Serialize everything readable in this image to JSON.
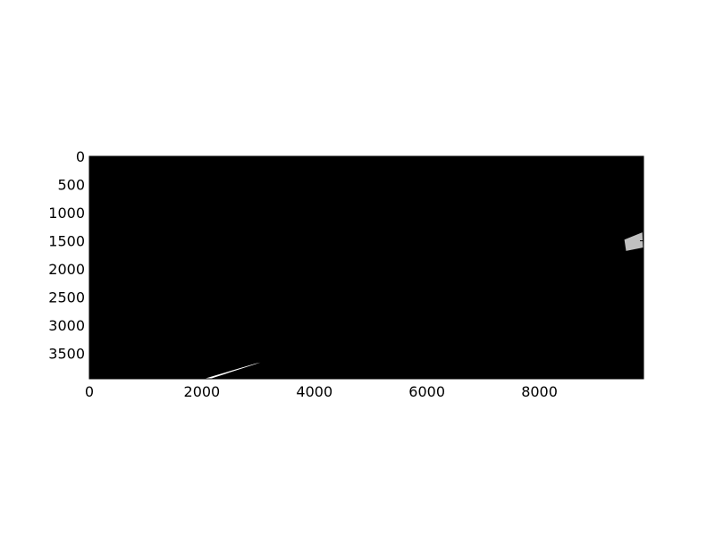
{
  "chart_data": {
    "type": "heatmap",
    "title": "",
    "xlabel": "",
    "ylabel": "",
    "xlim": [
      0,
      9850
    ],
    "ylim": [
      3950,
      0
    ],
    "y_inverted": true,
    "x_ticks": [
      0,
      2000,
      4000,
      6000,
      8000
    ],
    "y_ticks": [
      0,
      500,
      1000,
      1500,
      2000,
      2500,
      3000,
      3500
    ],
    "x_tick_labels": [
      "0",
      "2000",
      "4000",
      "6000",
      "8000"
    ],
    "y_tick_labels": [
      "0",
      "500",
      "1000",
      "1500",
      "2000",
      "2500",
      "3000",
      "3500"
    ],
    "grid": false,
    "background_color": "#000000",
    "regions": [
      {
        "color": "#ffffff",
        "points": [
          [
            2040,
            3950
          ],
          [
            2150,
            3950
          ],
          [
            3040,
            3660
          ],
          [
            2950,
            3680
          ]
        ]
      },
      {
        "color": "#c0c0c0",
        "points": [
          [
            9510,
            1480
          ],
          [
            9830,
            1350
          ],
          [
            9840,
            1620
          ],
          [
            9540,
            1680
          ]
        ]
      }
    ]
  }
}
